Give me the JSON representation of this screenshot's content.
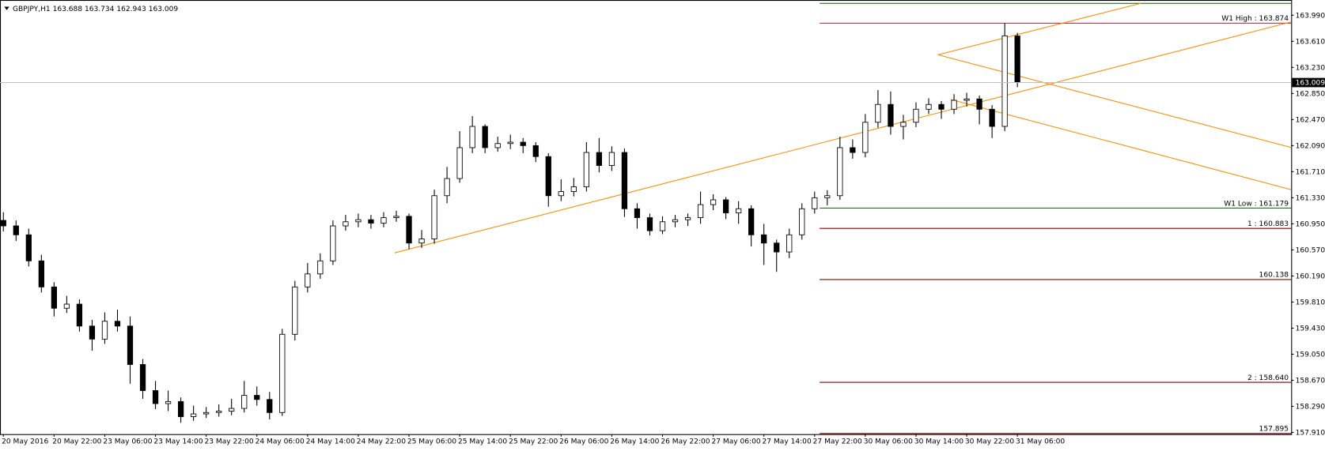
{
  "chart_data": {
    "type": "candlestick",
    "title": "GBPJPY,H1  163.688 163.734 162.943 163.009",
    "categories": [
      "20 May 2016",
      null,
      null,
      null,
      "20 May 22:00",
      null,
      null,
      null,
      "23 May 06:00",
      null,
      null,
      null,
      "23 May 14:00",
      null,
      null,
      null,
      "23 May 22:00",
      null,
      null,
      null,
      "24 May 06:00",
      null,
      null,
      null,
      "24 May 14:00",
      null,
      null,
      null,
      "24 May 22:00",
      null,
      null,
      null,
      "25 May 06:00",
      null,
      null,
      null,
      "25 May 14:00",
      null,
      null,
      null,
      "25 May 22:00",
      null,
      null,
      null,
      "26 May 06:00",
      null,
      null,
      null,
      "26 May 14:00",
      null,
      null,
      null,
      "26 May 22:00",
      null,
      null,
      null,
      "27 May 06:00",
      null,
      null,
      null,
      "27 May 14:00",
      null,
      null,
      null,
      "27 May 22:00",
      null,
      null,
      null,
      "30 May 06:00",
      null,
      null,
      null,
      "30 May 14:00",
      null,
      null,
      null,
      "30 May 22:00",
      null,
      null,
      null,
      "31 May 06:00"
    ],
    "open": [
      161.0,
      160.92,
      160.79,
      160.41,
      160.03,
      159.72,
      159.78,
      159.46,
      159.27,
      159.53,
      159.46,
      158.9,
      158.52,
      158.33,
      158.36,
      158.14,
      158.18,
      158.2,
      158.22,
      158.26,
      158.45,
      158.39,
      158.2,
      159.34,
      160.03,
      160.22,
      160.41,
      160.92,
      160.98,
      161.01,
      160.96,
      161.04,
      161.06,
      160.67,
      160.73,
      161.36,
      161.61,
      162.06,
      162.37,
      162.06,
      162.12,
      162.14,
      162.09,
      161.93,
      161.36,
      161.42,
      161.49,
      161.99,
      161.8,
      161.99,
      161.17,
      161.04,
      160.85,
      160.98,
      161.01,
      161.04,
      161.23,
      161.3,
      161.11,
      161.17,
      160.79,
      160.67,
      160.54,
      160.79,
      161.17,
      161.33,
      161.36,
      162.06,
      161.99,
      162.43,
      162.69,
      162.37,
      162.43,
      162.62,
      162.69,
      162.62,
      162.75,
      162.77,
      162.62,
      162.37,
      163.688
    ],
    "high": [
      161.12,
      161.0,
      160.88,
      160.5,
      160.1,
      159.9,
      159.85,
      159.55,
      159.66,
      159.7,
      159.6,
      158.98,
      158.66,
      158.52,
      158.42,
      158.3,
      158.28,
      158.32,
      158.4,
      158.66,
      158.58,
      158.5,
      159.42,
      160.12,
      160.38,
      160.52,
      161.0,
      161.08,
      161.1,
      161.08,
      161.12,
      161.14,
      161.1,
      160.86,
      161.45,
      161.78,
      162.3,
      162.52,
      162.4,
      162.22,
      162.25,
      162.2,
      162.14,
      161.98,
      161.6,
      161.62,
      162.14,
      162.2,
      162.08,
      162.05,
      161.25,
      161.1,
      161.06,
      161.08,
      161.1,
      161.42,
      161.38,
      161.34,
      161.28,
      161.22,
      160.95,
      160.72,
      160.88,
      161.25,
      161.42,
      161.44,
      162.22,
      162.18,
      162.55,
      162.9,
      162.88,
      162.54,
      162.72,
      162.78,
      162.74,
      162.84,
      162.86,
      162.82,
      162.68,
      163.874,
      163.734
    ],
    "low": [
      160.84,
      160.7,
      160.33,
      159.95,
      159.6,
      159.65,
      159.38,
      159.1,
      159.2,
      159.38,
      158.62,
      158.4,
      158.25,
      158.22,
      158.05,
      158.08,
      158.12,
      158.14,
      158.16,
      158.2,
      158.3,
      158.1,
      158.15,
      159.25,
      159.95,
      160.15,
      160.35,
      160.85,
      160.9,
      160.88,
      160.9,
      160.98,
      160.58,
      160.6,
      160.66,
      161.25,
      161.55,
      161.98,
      161.98,
      162.0,
      162.04,
      161.98,
      161.85,
      161.2,
      161.28,
      161.35,
      161.42,
      161.7,
      161.72,
      161.05,
      160.88,
      160.78,
      160.8,
      160.9,
      160.92,
      160.95,
      161.15,
      161.02,
      160.95,
      160.62,
      160.35,
      160.25,
      160.45,
      160.72,
      161.1,
      161.22,
      161.3,
      161.9,
      161.92,
      162.35,
      162.25,
      162.18,
      162.36,
      162.55,
      162.48,
      162.55,
      162.66,
      162.4,
      162.2,
      162.3,
      162.943
    ],
    "close": [
      160.92,
      160.79,
      160.41,
      160.03,
      159.72,
      159.78,
      159.46,
      159.27,
      159.53,
      159.46,
      158.9,
      158.52,
      158.33,
      158.36,
      158.14,
      158.18,
      158.2,
      158.22,
      158.26,
      158.45,
      158.39,
      158.2,
      159.34,
      160.03,
      160.22,
      160.41,
      160.92,
      160.98,
      161.01,
      160.96,
      161.04,
      161.06,
      160.67,
      160.73,
      161.36,
      161.61,
      162.06,
      162.37,
      162.06,
      162.12,
      162.14,
      162.09,
      161.93,
      161.36,
      161.42,
      161.49,
      161.99,
      161.8,
      161.99,
      161.17,
      161.04,
      160.85,
      160.98,
      161.01,
      161.04,
      161.23,
      161.3,
      161.11,
      161.17,
      160.79,
      160.67,
      160.54,
      160.79,
      161.17,
      161.33,
      161.36,
      162.06,
      161.99,
      162.43,
      162.69,
      162.37,
      162.43,
      162.62,
      162.69,
      162.62,
      162.75,
      162.77,
      162.62,
      162.37,
      163.69,
      163.009
    ],
    "up_color": "#ffffff",
    "down_color": "#000000",
    "ylim": [
      157.885,
      164.163
    ],
    "yticks": [
      {
        "value": 163.99,
        "label": "163.990"
      },
      {
        "value": 163.61,
        "label": "163.610"
      },
      {
        "value": 163.23,
        "label": "163.230"
      },
      {
        "value": 162.85,
        "label": "162.850"
      },
      {
        "value": 162.47,
        "label": "162.470"
      },
      {
        "value": 162.09,
        "label": "162.090"
      },
      {
        "value": 161.71,
        "label": "161.710"
      },
      {
        "value": 161.33,
        "label": "161.330"
      },
      {
        "value": 160.95,
        "label": "160.950"
      },
      {
        "value": 160.57,
        "label": "160.570"
      },
      {
        "value": 160.19,
        "label": "160.190"
      },
      {
        "value": 159.81,
        "label": "159.810"
      },
      {
        "value": 159.43,
        "label": "159.430"
      },
      {
        "value": 159.05,
        "label": "159.050"
      },
      {
        "value": 158.67,
        "label": "158.670"
      },
      {
        "value": 158.29,
        "label": "158.290"
      },
      {
        "value": 157.91,
        "label": "157.910"
      }
    ],
    "last_price": 163.009,
    "levels": [
      {
        "value": 163.874,
        "label": "W1 High : 163.874",
        "color": "#dc143c"
      },
      {
        "value": 161.179,
        "label": "W1 Low : 161.179",
        "color": "#008000"
      },
      {
        "value": 160.883,
        "label": "1 : 160.883",
        "color": "#8b0000"
      },
      {
        "value": 160.138,
        "label": "160.138",
        "color": "#8b0000"
      },
      {
        "value": 158.64,
        "label": "2 : 158.640",
        "color": "#8b0000"
      },
      {
        "value": 157.895,
        "label": "157.895",
        "color": "#8b0000"
      }
    ]
  }
}
